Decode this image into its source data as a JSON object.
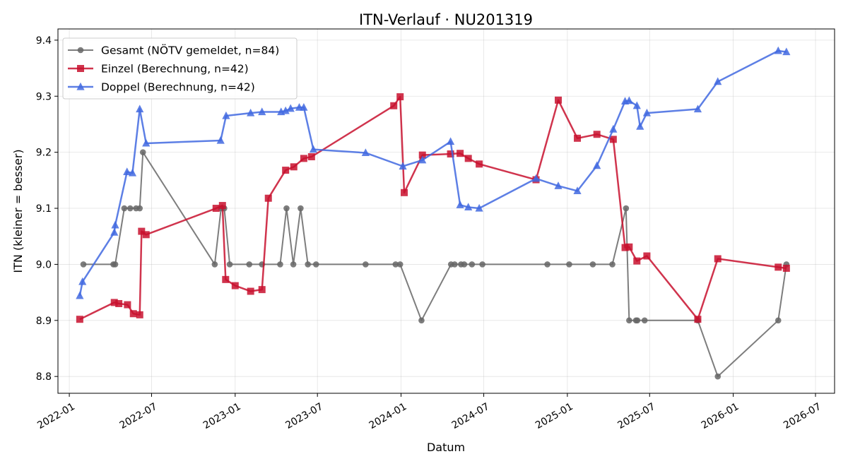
{
  "chart_data": {
    "type": "line",
    "title": "ITN-Verlauf · NU201319",
    "xlabel": "Datum",
    "ylabel": "ITN  (kleiner = besser)",
    "ylim": [
      8.77,
      9.42
    ],
    "xlim": [
      "2021-12-07",
      "2026-08-12"
    ],
    "grid": true,
    "legend_position": "top-left",
    "y_ticks": [
      8.8,
      8.9,
      9.0,
      9.1,
      9.2,
      9.3,
      9.4
    ],
    "x_ticks": [
      "2022-01-01",
      "2022-07-01",
      "2023-01-01",
      "2023-07-01",
      "2024-01-01",
      "2024-07-01",
      "2025-01-01",
      "2025-07-01",
      "2026-01-01",
      "2026-07-01"
    ],
    "x_tick_labels": [
      "2022-01",
      "2022-07",
      "2023-01",
      "2023-07",
      "2024-01",
      "2024-07",
      "2025-01",
      "2025-07",
      "2026-01",
      "2026-07"
    ],
    "y_tick_labels": [
      "8.8",
      "8.9",
      "9.0",
      "9.1",
      "9.2",
      "9.3",
      "9.4"
    ],
    "series": [
      {
        "name": "Gesamt (NÖTV gemeldet, n=84)",
        "color": "#666666",
        "marker": "circle",
        "x": [
          "2022-02-01",
          "2022-04-08",
          "2022-04-12",
          "2022-05-02",
          "2022-05-15",
          "2022-05-28",
          "2022-06-05",
          "2022-06-12",
          "2022-11-17",
          "2022-12-01",
          "2022-12-08",
          "2022-12-20",
          "2023-02-01",
          "2023-03-01",
          "2023-04-10",
          "2023-04-24",
          "2023-05-09",
          "2023-05-25",
          "2023-06-10",
          "2023-06-28",
          "2023-10-15",
          "2023-12-20",
          "2023-12-30",
          "2024-02-15",
          "2024-04-20",
          "2024-04-28",
          "2024-05-12",
          "2024-05-19",
          "2024-06-05",
          "2024-06-28",
          "2024-11-18",
          "2025-01-05",
          "2025-02-26",
          "2025-04-10",
          "2025-05-10",
          "2025-05-17",
          "2025-06-01",
          "2025-06-04",
          "2025-06-20",
          "2025-10-15",
          "2025-11-28",
          "2026-04-10",
          "2026-04-28"
        ],
        "y": [
          9.0,
          9.0,
          9.0,
          9.1,
          9.1,
          9.1,
          9.1,
          9.2,
          9.0,
          9.1,
          9.1,
          9.0,
          9.0,
          9.0,
          9.0,
          9.1,
          9.0,
          9.1,
          9.0,
          9.0,
          9.0,
          9.0,
          9.0,
          8.9,
          9.0,
          9.0,
          9.0,
          9.0,
          9.0,
          9.0,
          9.0,
          9.0,
          9.0,
          9.0,
          9.1,
          8.9,
          8.9,
          8.9,
          8.9,
          8.9,
          8.8,
          8.9,
          9.0
        ]
      },
      {
        "name": "Einzel (Berechnung, n=42)",
        "color": "#c8102e",
        "marker": "square",
        "x": [
          "2022-01-24",
          "2022-04-10",
          "2022-04-20",
          "2022-05-09",
          "2022-05-22",
          "2022-06-05",
          "2022-06-09",
          "2022-06-19",
          "2022-11-20",
          "2022-12-04",
          "2022-12-11",
          "2023-01-01",
          "2023-02-04",
          "2023-03-01",
          "2023-03-15",
          "2023-04-22",
          "2023-05-10",
          "2023-06-01",
          "2023-06-18",
          "2023-12-16",
          "2023-12-30",
          "2024-01-08",
          "2024-02-17",
          "2024-04-19",
          "2024-05-10",
          "2024-05-28",
          "2024-06-21",
          "2024-10-24",
          "2024-12-12",
          "2025-01-23",
          "2025-03-07",
          "2025-04-12",
          "2025-05-08",
          "2025-05-17",
          "2025-06-03",
          "2025-06-25",
          "2025-10-15",
          "2025-11-28",
          "2026-04-10",
          "2026-04-28"
        ],
        "y": [
          8.902,
          8.932,
          8.93,
          8.928,
          8.912,
          8.91,
          9.059,
          9.053,
          9.1,
          9.105,
          8.973,
          8.962,
          8.952,
          8.955,
          9.118,
          9.168,
          9.174,
          9.189,
          9.192,
          9.283,
          9.299,
          9.128,
          9.195,
          9.197,
          9.198,
          9.189,
          9.179,
          9.151,
          9.293,
          9.225,
          9.232,
          9.223,
          9.03,
          9.031,
          9.006,
          9.015,
          8.902,
          9.01,
          8.995,
          8.993
        ]
      },
      {
        "name": "Doppel (Berechnung, n=42)",
        "color": "#4169e1",
        "marker": "triangle",
        "x": [
          "2022-01-24",
          "2022-01-30",
          "2022-04-10",
          "2022-04-12",
          "2022-05-08",
          "2022-05-20",
          "2022-06-05",
          "2022-06-19",
          "2022-11-30",
          "2022-12-12",
          "2023-02-04",
          "2023-03-01",
          "2023-04-12",
          "2023-04-22",
          "2023-05-03",
          "2023-05-22",
          "2023-06-01",
          "2023-06-22",
          "2023-10-15",
          "2024-01-05",
          "2024-02-17",
          "2024-04-19",
          "2024-05-10",
          "2024-05-28",
          "2024-06-21",
          "2024-10-24",
          "2024-12-12",
          "2025-01-23",
          "2025-03-07",
          "2025-04-12",
          "2025-05-08",
          "2025-05-17",
          "2025-06-03",
          "2025-06-10",
          "2025-06-25",
          "2025-10-15",
          "2025-11-28",
          "2026-04-10",
          "2026-04-28"
        ],
        "y": [
          8.944,
          8.969,
          9.057,
          9.07,
          9.165,
          9.163,
          9.277,
          9.216,
          9.221,
          9.265,
          9.27,
          9.272,
          9.272,
          9.274,
          9.278,
          9.28,
          9.28,
          9.205,
          9.199,
          9.175,
          9.186,
          9.219,
          9.106,
          9.102,
          9.1,
          9.153,
          9.14,
          9.131,
          9.176,
          9.241,
          9.291,
          9.292,
          9.283,
          9.246,
          9.27,
          9.277,
          9.326,
          9.381,
          9.379
        ]
      }
    ]
  }
}
